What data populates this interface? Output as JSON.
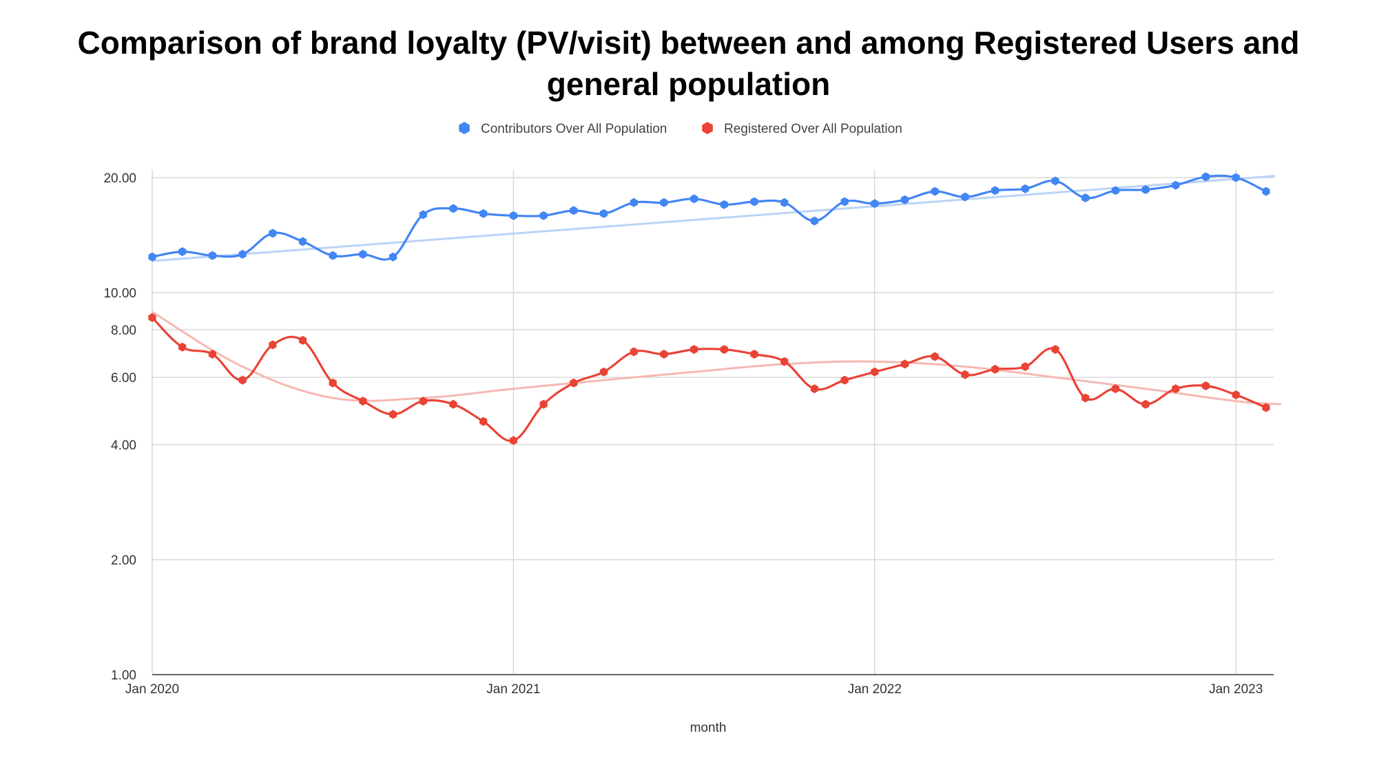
{
  "chart_data": {
    "type": "line",
    "title_line1": "Comparison of brand loyalty (PV/visit) between and among Registered Users and",
    "title_line2": "general population",
    "xlabel": "month",
    "ylabel": "",
    "y_scale": "log",
    "ylim": [
      1,
      21
    ],
    "y_ticks": [
      {
        "value": 1,
        "label": "1.00"
      },
      {
        "value": 2,
        "label": "2.00"
      },
      {
        "value": 4,
        "label": "4.00"
      },
      {
        "value": 6,
        "label": "6.00"
      },
      {
        "value": 8,
        "label": "8.00"
      },
      {
        "value": 10,
        "label": "10.00"
      },
      {
        "value": 20,
        "label": "20.00"
      }
    ],
    "x_ticks": [
      {
        "value": "2020-01",
        "label": "Jan 2020"
      },
      {
        "value": "2021-01",
        "label": "Jan 2021"
      },
      {
        "value": "2022-01",
        "label": "Jan 2022"
      },
      {
        "value": "2023-01",
        "label": "Jan 2023"
      }
    ],
    "x_range": [
      "2020-01",
      "2023-02"
    ],
    "x": [
      "2020-01",
      "2020-02",
      "2020-03",
      "2020-04",
      "2020-05",
      "2020-06",
      "2020-07",
      "2020-08",
      "2020-09",
      "2020-10",
      "2020-11",
      "2020-12",
      "2021-01",
      "2021-02",
      "2021-03",
      "2021-04",
      "2021-05",
      "2021-06",
      "2021-07",
      "2021-08",
      "2021-09",
      "2021-10",
      "2021-11",
      "2021-12",
      "2022-01",
      "2022-02",
      "2022-03",
      "2022-04",
      "2022-05",
      "2022-06",
      "2022-07",
      "2022-08",
      "2022-09",
      "2022-10",
      "2022-11",
      "2022-12",
      "2023-01",
      "2023-02"
    ],
    "grid": true,
    "legend_position": "top",
    "series": [
      {
        "name": "Contributors Over All Population",
        "color": "#4285F4",
        "trend_color": "#BBD3F8",
        "values": [
          12.4,
          12.8,
          12.5,
          12.6,
          14.3,
          13.6,
          12.5,
          12.6,
          12.4,
          16.0,
          16.6,
          16.1,
          15.9,
          15.9,
          16.4,
          16.1,
          17.2,
          17.2,
          17.6,
          17.0,
          17.3,
          17.2,
          15.4,
          17.3,
          17.1,
          17.5,
          18.4,
          17.8,
          18.5,
          18.7,
          19.6,
          17.7,
          18.5,
          18.6,
          19.1,
          20.1,
          20.0,
          18.4
        ],
        "trend": [
          12.1,
          20.2
        ]
      },
      {
        "name": "Registered Over All Population",
        "color": "#EA4335",
        "trend_color": "#F6B8B2",
        "values": [
          8.6,
          7.2,
          6.9,
          5.9,
          7.3,
          7.5,
          5.8,
          5.2,
          4.8,
          5.2,
          5.1,
          4.6,
          4.1,
          5.1,
          5.8,
          6.2,
          7.0,
          6.9,
          7.1,
          7.1,
          6.9,
          6.6,
          5.6,
          5.9,
          6.2,
          6.5,
          6.8,
          6.1,
          6.3,
          6.4,
          7.1,
          5.3,
          5.6,
          5.1,
          5.6,
          5.7,
          5.4,
          5.0
        ],
        "trend_points": [
          [
            0,
            8.9
          ],
          [
            3,
            6.4
          ],
          [
            6,
            5.3
          ],
          [
            9,
            5.3
          ],
          [
            12,
            5.6
          ],
          [
            15,
            5.9
          ],
          [
            18,
            6.2
          ],
          [
            21,
            6.5
          ],
          [
            24,
            6.6
          ],
          [
            27,
            6.4
          ],
          [
            30,
            6.0
          ],
          [
            33,
            5.6
          ],
          [
            36,
            5.2
          ],
          [
            37.5,
            5.1
          ]
        ]
      }
    ]
  }
}
